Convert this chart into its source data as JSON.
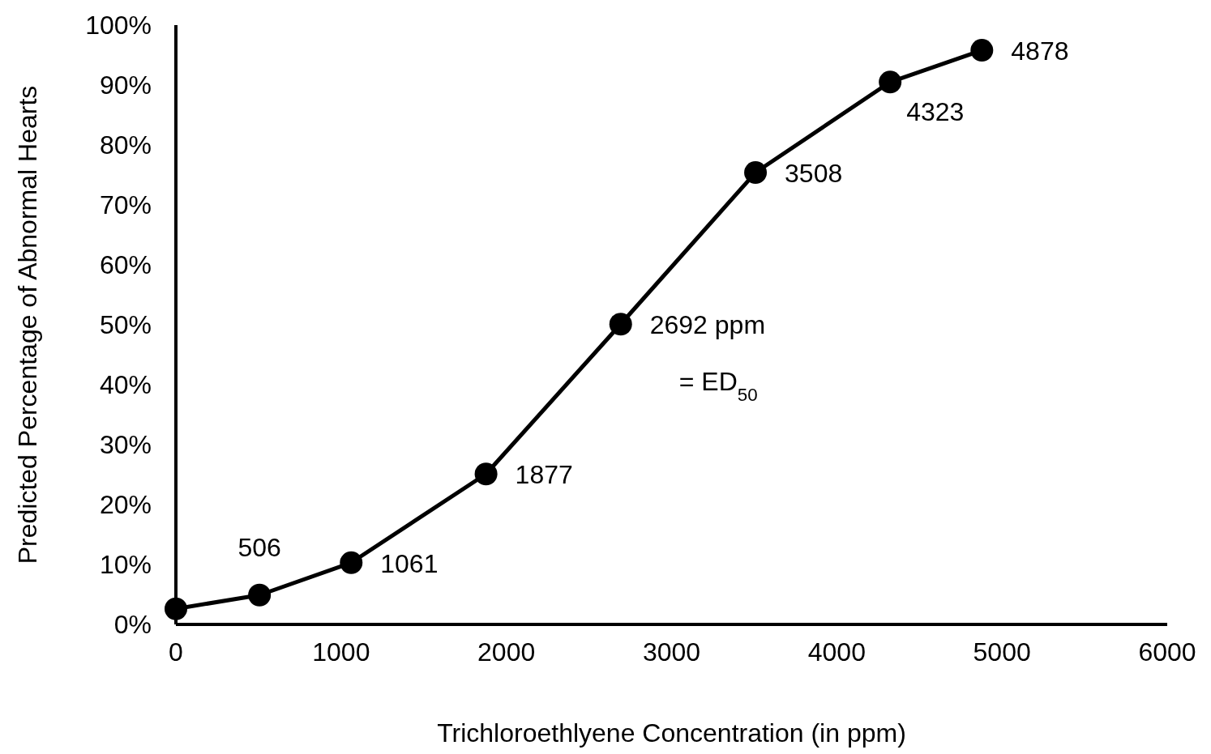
{
  "chart_data": {
    "type": "line",
    "xlabel": "Trichloroethlyene Concentration (in ppm)",
    "ylabel": "Predicted Percentage of Abnormal Hearts",
    "x": [
      0,
      506,
      1061,
      1877,
      2692,
      3508,
      4323,
      4878
    ],
    "series": [
      {
        "color": "#000000",
        "values": [
          2.6,
          4.9,
          10.3,
          25.1,
          50.1,
          75.4,
          90.5,
          95.8
        ]
      }
    ],
    "annotations": [
      {
        "text": "506",
        "x": 506,
        "y": 4.9
      },
      {
        "text": "1061",
        "x": 1061,
        "y": 10.3
      },
      {
        "text": "1877",
        "x": 1877,
        "y": 25.1
      },
      {
        "text": "2692 ppm",
        "x": 2692,
        "y": 50.1
      },
      {
        "text": "= ED$_{50}$",
        "x": 2692,
        "y": 50.1
      },
      {
        "text": "3508",
        "x": 3508,
        "y": 75.4
      },
      {
        "text": "4323",
        "x": 4323,
        "y": 90.5
      },
      {
        "text": "4878",
        "x": 4878,
        "y": 95.8
      }
    ],
    "xlim": [
      0,
      6000
    ],
    "xticks": [
      0,
      1000,
      2000,
      3000,
      4000,
      5000,
      6000
    ],
    "ylim": [
      0,
      100
    ],
    "yticks": [
      {
        "value": 0,
        "label": "0%"
      },
      {
        "value": 10,
        "label": "10%"
      },
      {
        "value": 20,
        "label": "20%"
      },
      {
        "value": 30,
        "label": "30%"
      },
      {
        "value": 40,
        "label": "40%"
      },
      {
        "value": 50,
        "label": "50%"
      },
      {
        "value": 60,
        "label": "60%"
      },
      {
        "value": 70,
        "label": "70%"
      },
      {
        "value": 80,
        "label": "80%"
      },
      {
        "value": 90,
        "label": "90%"
      },
      {
        "value": 100,
        "label": "100%"
      }
    ],
    "marker": "circle",
    "line_style": "solid",
    "grid": false
  }
}
